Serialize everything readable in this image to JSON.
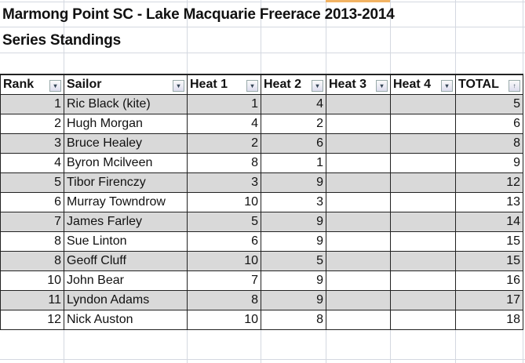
{
  "title": "Marmong Point SC - Lake Macquarie Freerace 2013-2014",
  "subtitle": "Series Standings",
  "headers": [
    "Rank",
    "Sailor",
    "Heat 1",
    "Heat 2",
    "Heat 3",
    "Heat 4",
    "TOTAL"
  ],
  "header_icons": [
    "filter-dropdown-icon",
    "filter-dropdown-icon",
    "filter-dropdown-icon",
    "filter-dropdown-icon",
    "filter-dropdown-icon",
    "filter-dropdown-icon",
    "sort-ascending-filter-icon"
  ],
  "rows": [
    [
      "1",
      "Ric Black (kite)",
      "1",
      "4",
      "",
      "",
      "5"
    ],
    [
      "2",
      "Hugh Morgan",
      "4",
      "2",
      "",
      "",
      "6"
    ],
    [
      "3",
      "Bruce Healey",
      "2",
      "6",
      "",
      "",
      "8"
    ],
    [
      "4",
      "Byron Mcilveen",
      "8",
      "1",
      "",
      "",
      "9"
    ],
    [
      "5",
      "Tibor Firenczy",
      "3",
      "9",
      "",
      "",
      "12"
    ],
    [
      "6",
      "Murray Towndrow",
      "10",
      "3",
      "",
      "",
      "13"
    ],
    [
      "7",
      "James Farley",
      "5",
      "9",
      "",
      "",
      "14"
    ],
    [
      "8",
      "Sue Linton",
      "6",
      "9",
      "",
      "",
      "15"
    ],
    [
      "8",
      "Geoff Cluff",
      "10",
      "5",
      "",
      "",
      "15"
    ],
    [
      "10",
      "John Bear",
      "7",
      "9",
      "",
      "",
      "16"
    ],
    [
      "11",
      "Lyndon Adams",
      "8",
      "9",
      "",
      "",
      "17"
    ],
    [
      "12",
      "Nick Auston",
      "10",
      "8",
      "",
      "",
      "18"
    ]
  ],
  "colors": {
    "band": "#d9d9d9",
    "gridline": "#d4d8e0",
    "selected_column": "#f2b363"
  }
}
